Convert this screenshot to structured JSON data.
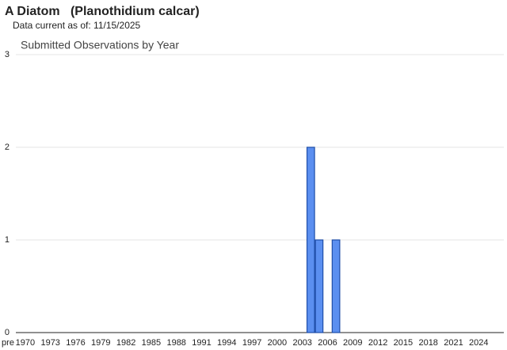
{
  "header": {
    "title": "A Diatom   (Planothidium calcar)",
    "subtitle": "Data current as of: 11/15/2025"
  },
  "chart_data": {
    "type": "bar",
    "title": "Submitted Observations by Year",
    "categories": [
      "pre",
      "1970",
      null,
      null,
      "1973",
      null,
      null,
      "1976",
      null,
      null,
      "1979",
      null,
      null,
      "1982",
      null,
      null,
      "1985",
      null,
      null,
      "1988",
      null,
      null,
      "1991",
      null,
      null,
      "1994",
      null,
      null,
      "1997",
      null,
      null,
      "2000",
      null,
      null,
      "2003",
      null,
      null,
      "2006",
      null,
      null,
      "2009",
      null,
      null,
      "2012",
      null,
      null,
      "2015",
      null,
      null,
      "2018",
      null,
      null,
      "2021",
      null,
      null,
      "2024",
      null
    ],
    "values": [
      0,
      0,
      0,
      0,
      0,
      0,
      0,
      0,
      0,
      0,
      0,
      0,
      0,
      0,
      0,
      0,
      0,
      0,
      0,
      0,
      0,
      0,
      0,
      0,
      0,
      0,
      0,
      0,
      0,
      0,
      0,
      0,
      0,
      0,
      0,
      2,
      1,
      0,
      1,
      0,
      0,
      0,
      0,
      0,
      0,
      0,
      0,
      0,
      0,
      0,
      0,
      0,
      0,
      0,
      0,
      0,
      0
    ],
    "color": "#5b8ff0",
    "ylim": [
      0,
      3
    ],
    "yticks": [
      0,
      1,
      2,
      3
    ],
    "grid": true
  }
}
